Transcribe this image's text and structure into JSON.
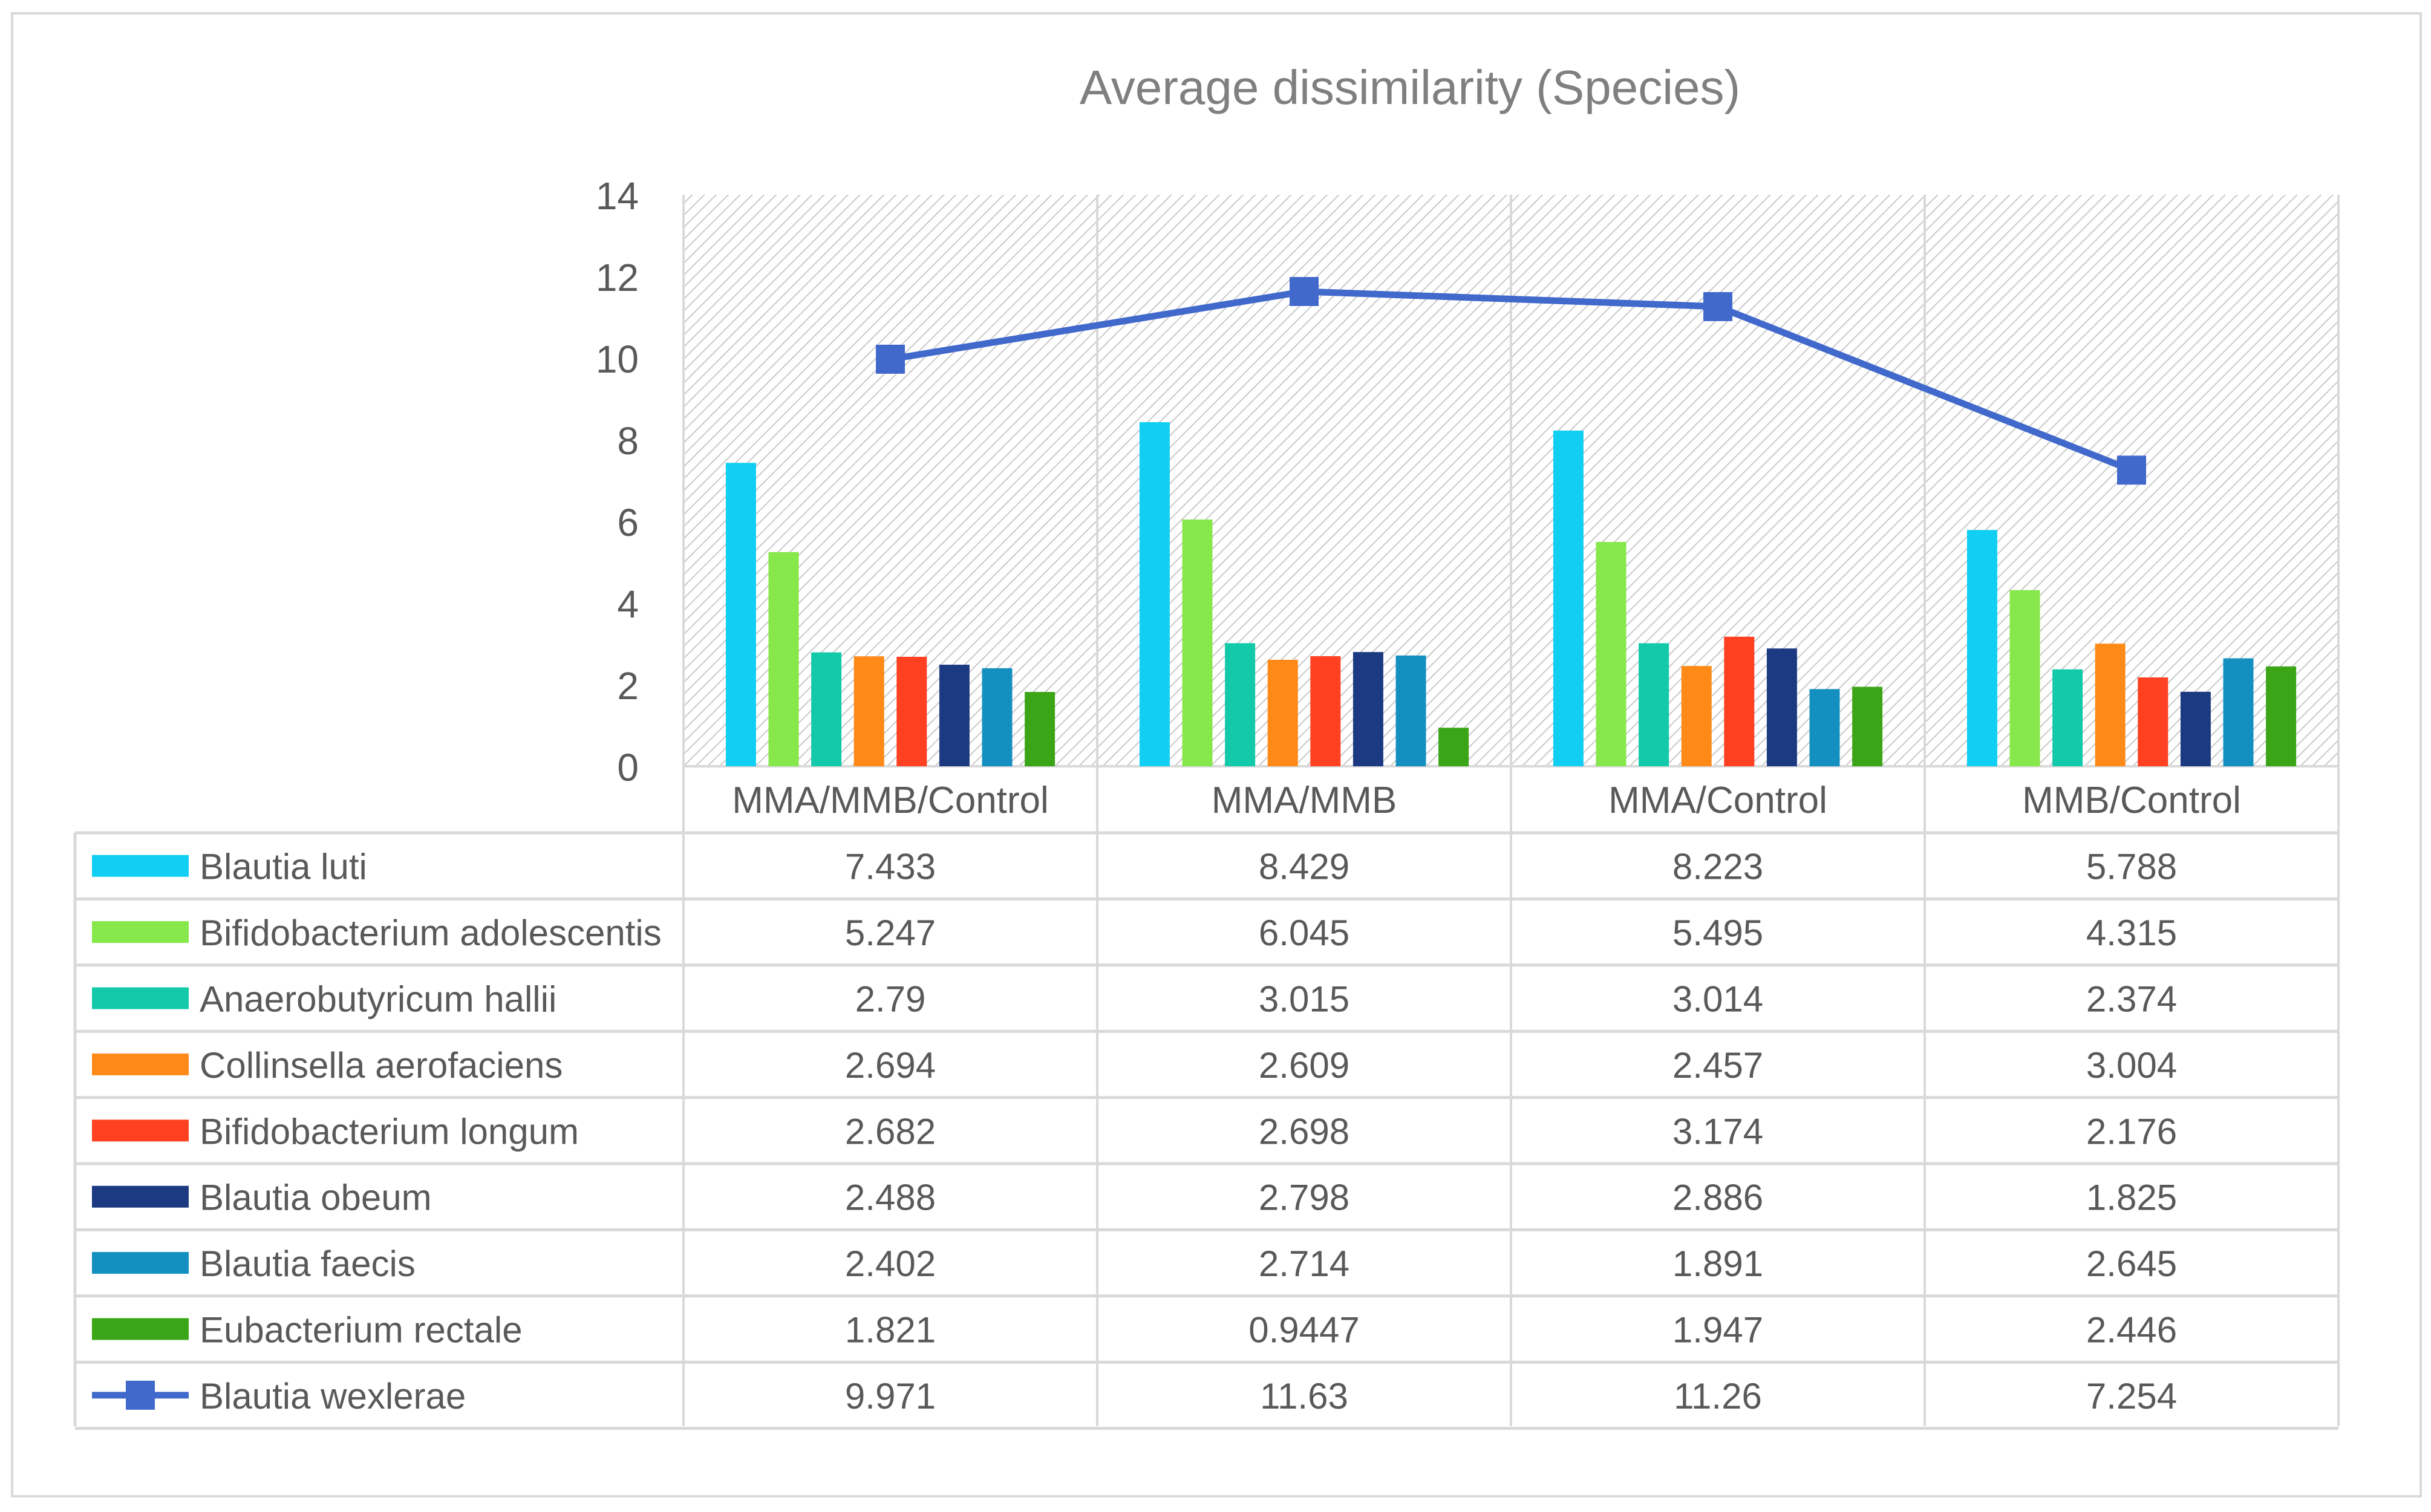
{
  "chart_data": {
    "type": "bar",
    "title": "Average dissimilarity (Species)",
    "categories": [
      "MMA/MMB/Control",
      "MMA/MMB",
      "MMA/Control",
      "MMB/Control"
    ],
    "ylim": [
      0,
      14
    ],
    "yticks": [
      0,
      2,
      4,
      6,
      8,
      10,
      12,
      14
    ],
    "xlabel": "",
    "ylabel": "",
    "legend": "data-table",
    "series": [
      {
        "name": "Blautia luti",
        "kind": "bar",
        "color": "#11CFF2",
        "values": [
          7.433,
          8.429,
          8.223,
          5.788
        ],
        "labels": [
          "7.433",
          "8.429",
          "8.223",
          "5.788"
        ]
      },
      {
        "name": "Bifidobacterium adolescentis",
        "kind": "bar",
        "color": "#86E84A",
        "values": [
          5.247,
          6.045,
          5.495,
          4.315
        ],
        "labels": [
          "5.247",
          "6.045",
          "5.495",
          "4.315"
        ]
      },
      {
        "name": "Anaerobutyricum hallii",
        "kind": "bar",
        "color": "#12C9AA",
        "values": [
          2.79,
          3.015,
          3.014,
          2.374
        ],
        "labels": [
          "2.79",
          "3.015",
          "3.014",
          "2.374"
        ]
      },
      {
        "name": "Collinsella aerofaciens",
        "kind": "bar",
        "color": "#FF8A17",
        "values": [
          2.694,
          2.609,
          2.457,
          3.004
        ],
        "labels": [
          "2.694",
          "2.609",
          "2.457",
          "3.004"
        ]
      },
      {
        "name": "Bifidobacterium longum",
        "kind": "bar",
        "color": "#FF4021",
        "values": [
          2.682,
          2.698,
          3.174,
          2.176
        ],
        "labels": [
          "2.682",
          "2.698",
          "3.174",
          "2.176"
        ]
      },
      {
        "name": "Blautia obeum",
        "kind": "bar",
        "color": "#1C3A82",
        "values": [
          2.488,
          2.798,
          2.886,
          1.825
        ],
        "labels": [
          "2.488",
          "2.798",
          "2.886",
          "1.825"
        ]
      },
      {
        "name": "Blautia faecis",
        "kind": "bar",
        "color": "#1490C0",
        "values": [
          2.402,
          2.714,
          1.891,
          2.645
        ],
        "labels": [
          "2.402",
          "2.714",
          "1.891",
          "2.645"
        ]
      },
      {
        "name": "Eubacterium rectale",
        "kind": "bar",
        "color": "#3AA617",
        "values": [
          1.821,
          0.9447,
          1.947,
          2.446
        ],
        "labels": [
          "1.821",
          "0.9447",
          "1.947",
          "2.446"
        ]
      },
      {
        "name": "Blautia wexlerae",
        "kind": "line",
        "color": "#4169CC",
        "values": [
          9.971,
          11.63,
          11.26,
          7.254
        ],
        "labels": [
          "9.971",
          "11.63",
          "11.26",
          "7.254"
        ]
      }
    ]
  }
}
